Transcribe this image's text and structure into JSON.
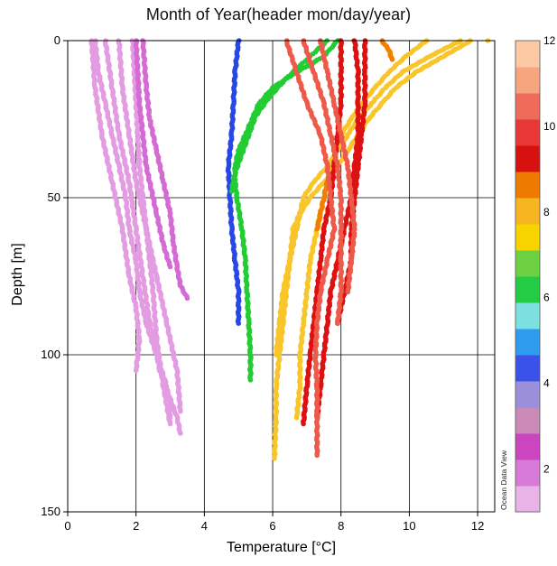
{
  "chart_data": {
    "type": "scatter",
    "title": "Month of Year(header mon/day/year)",
    "xlabel": "Temperature [°C]",
    "ylabel": "Depth [m]",
    "xlim": [
      0,
      12.5
    ],
    "ylim": [
      0,
      150
    ],
    "y_inverted": true,
    "x_ticks": [
      0,
      2,
      4,
      6,
      8,
      10,
      12
    ],
    "y_ticks": [
      0,
      50,
      100,
      150
    ],
    "grid": true,
    "colorbar": {
      "range": [
        1,
        12
      ],
      "ticks": [
        2,
        4,
        6,
        8,
        10,
        12
      ],
      "placement": "right",
      "colors": [
        "#e8b4e8",
        "#d77ad8",
        "#cc44c0",
        "#c98ab8",
        "#9a8fd8",
        "#3a52e8",
        "#2f9cf0",
        "#7de0e0",
        "#22cc44",
        "#6dd040",
        "#f6d400",
        "#f7b51f",
        "#ee7a00",
        "#d71010",
        "#e83838",
        "#f06a5a",
        "#f7a57e",
        "#fbc9a4"
      ]
    },
    "series": [
      {
        "month": 1.5,
        "color": "#e39be2",
        "points": [
          [
            0.8,
            0
          ],
          [
            0.9,
            10
          ],
          [
            1.1,
            20
          ],
          [
            1.3,
            30
          ],
          [
            1.5,
            40
          ],
          [
            1.7,
            50
          ],
          [
            1.8,
            60
          ],
          [
            2.0,
            70
          ],
          [
            2.1,
            80
          ],
          [
            2.3,
            90
          ],
          [
            2.6,
            100
          ],
          [
            2.9,
            110
          ],
          [
            3.0,
            120
          ]
        ]
      },
      {
        "month": 1.5,
        "color": "#e39be2",
        "points": [
          [
            1.1,
            0
          ],
          [
            1.3,
            15
          ],
          [
            1.5,
            30
          ],
          [
            1.8,
            45
          ],
          [
            2.0,
            60
          ],
          [
            2.2,
            75
          ],
          [
            2.4,
            90
          ],
          [
            2.7,
            105
          ],
          [
            3.2,
            120
          ],
          [
            3.3,
            125
          ]
        ]
      },
      {
        "month": 1.5,
        "color": "#e39be2",
        "points": [
          [
            0.7,
            0
          ],
          [
            0.8,
            15
          ],
          [
            1.0,
            30
          ],
          [
            1.3,
            45
          ],
          [
            1.6,
            60
          ],
          [
            1.8,
            75
          ],
          [
            2.0,
            85
          ],
          [
            2.1,
            95
          ],
          [
            2.0,
            105
          ]
        ]
      },
      {
        "month": 1.5,
        "color": "#e39be2",
        "points": [
          [
            1.5,
            0
          ],
          [
            1.6,
            15
          ],
          [
            1.8,
            30
          ],
          [
            2.0,
            45
          ],
          [
            2.3,
            60
          ],
          [
            2.6,
            75
          ],
          [
            2.9,
            90
          ],
          [
            3.2,
            105
          ],
          [
            3.3,
            118
          ]
        ]
      },
      {
        "month": 1.5,
        "color": "#e39be2",
        "points": [
          [
            1.9,
            0
          ],
          [
            2.0,
            20
          ],
          [
            2.1,
            40
          ],
          [
            2.3,
            60
          ],
          [
            2.5,
            80
          ],
          [
            2.6,
            95
          ],
          [
            2.8,
            110
          ],
          [
            3.0,
            122
          ]
        ]
      },
      {
        "month": 2.2,
        "color": "#d46ad3",
        "points": [
          [
            2.2,
            0
          ],
          [
            2.3,
            15
          ],
          [
            2.4,
            25
          ],
          [
            2.6,
            35
          ],
          [
            2.8,
            45
          ],
          [
            3.0,
            55
          ],
          [
            3.1,
            65
          ],
          [
            3.2,
            72
          ],
          [
            3.3,
            78
          ],
          [
            3.5,
            82
          ]
        ]
      },
      {
        "month": 2.2,
        "color": "#d46ad3",
        "points": [
          [
            2.0,
            0
          ],
          [
            2.1,
            20
          ],
          [
            2.3,
            40
          ],
          [
            2.6,
            55
          ],
          [
            2.8,
            65
          ],
          [
            3.0,
            72
          ]
        ]
      },
      {
        "month": 5.0,
        "color": "#2747e6",
        "points": [
          [
            5.0,
            0
          ],
          [
            4.9,
            10
          ],
          [
            4.85,
            20
          ],
          [
            4.8,
            30
          ],
          [
            4.7,
            40
          ],
          [
            4.75,
            50
          ],
          [
            4.8,
            60
          ],
          [
            4.9,
            70
          ],
          [
            5.0,
            80
          ],
          [
            5.0,
            90
          ]
        ]
      },
      {
        "month": 6.8,
        "color": "#22cc33",
        "points": [
          [
            7.9,
            0
          ],
          [
            7.5,
            5
          ],
          [
            6.7,
            10
          ],
          [
            6.0,
            15
          ],
          [
            5.6,
            20
          ],
          [
            5.4,
            25
          ],
          [
            5.2,
            30
          ],
          [
            5.0,
            35
          ],
          [
            4.9,
            40
          ],
          [
            4.9,
            45
          ],
          [
            4.95,
            50
          ],
          [
            5.1,
            60
          ],
          [
            5.2,
            70
          ],
          [
            5.25,
            80
          ],
          [
            5.3,
            90
          ],
          [
            5.35,
            100
          ],
          [
            5.35,
            108
          ]
        ]
      },
      {
        "month": 6.8,
        "color": "#22cc33",
        "points": [
          [
            7.6,
            0
          ],
          [
            7.0,
            6
          ],
          [
            6.4,
            12
          ],
          [
            5.9,
            18
          ],
          [
            5.5,
            24
          ],
          [
            5.3,
            30
          ],
          [
            5.1,
            36
          ],
          [
            4.9,
            42
          ],
          [
            4.8,
            48
          ]
        ]
      },
      {
        "month": 7.8,
        "color": "#f8c52a",
        "points": [
          [
            11.8,
            0
          ],
          [
            11.0,
            5
          ],
          [
            10.2,
            10
          ],
          [
            9.6,
            15
          ],
          [
            9.2,
            20
          ],
          [
            8.8,
            25
          ],
          [
            8.5,
            30
          ],
          [
            8.2,
            35
          ],
          [
            7.9,
            40
          ],
          [
            7.5,
            45
          ],
          [
            7.1,
            50
          ],
          [
            6.8,
            55
          ],
          [
            6.6,
            60
          ],
          [
            6.5,
            70
          ],
          [
            6.4,
            80
          ],
          [
            6.3,
            90
          ],
          [
            6.2,
            100
          ],
          [
            6.1,
            110
          ],
          [
            6.1,
            120
          ],
          [
            6.05,
            133
          ]
        ]
      },
      {
        "month": 7.8,
        "color": "#f8c52a",
        "points": [
          [
            11.5,
            0
          ],
          [
            10.6,
            5
          ],
          [
            9.8,
            10
          ],
          [
            9.3,
            15
          ],
          [
            8.9,
            20
          ],
          [
            8.5,
            25
          ],
          [
            8.2,
            30
          ],
          [
            7.9,
            35
          ],
          [
            7.6,
            40
          ],
          [
            7.2,
            45
          ],
          [
            6.9,
            50
          ],
          [
            6.7,
            60
          ],
          [
            6.5,
            70
          ],
          [
            6.3,
            80
          ],
          [
            6.2,
            90
          ],
          [
            6.1,
            100
          ]
        ]
      },
      {
        "month": 7.8,
        "color": "#f8c52a",
        "points": [
          [
            10.5,
            0
          ],
          [
            9.9,
            5
          ],
          [
            9.4,
            10
          ],
          [
            9.0,
            15
          ],
          [
            8.6,
            20
          ],
          [
            8.3,
            25
          ],
          [
            8.0,
            30
          ],
          [
            7.7,
            40
          ],
          [
            7.5,
            50
          ],
          [
            7.3,
            60
          ],
          [
            7.1,
            70
          ],
          [
            7.0,
            80
          ],
          [
            6.9,
            90
          ],
          [
            6.8,
            100
          ],
          [
            6.8,
            110
          ],
          [
            6.7,
            120
          ]
        ]
      },
      {
        "month": 7.8,
        "color": "#f8c52a",
        "points": [
          [
            12.3,
            0
          ]
        ]
      },
      {
        "month": 8.6,
        "color": "#f07f00",
        "points": [
          [
            9.2,
            0
          ],
          [
            9.4,
            3
          ],
          [
            9.5,
            6
          ]
        ]
      },
      {
        "month": 8.6,
        "color": "#f07f00",
        "points": [
          [
            7.6,
            45
          ],
          [
            7.5,
            50
          ],
          [
            7.4,
            55
          ],
          [
            7.3,
            60
          ]
        ]
      },
      {
        "month": 10.3,
        "color": "#dd1111",
        "points": [
          [
            8.4,
            0
          ],
          [
            8.5,
            10
          ],
          [
            8.5,
            20
          ],
          [
            8.5,
            30
          ],
          [
            8.4,
            40
          ],
          [
            8.3,
            50
          ],
          [
            8.1,
            60
          ],
          [
            7.9,
            70
          ],
          [
            7.7,
            80
          ],
          [
            7.6,
            90
          ],
          [
            7.5,
            100
          ],
          [
            7.4,
            110
          ],
          [
            7.3,
            120
          ]
        ]
      },
      {
        "month": 10.3,
        "color": "#dd1111",
        "points": [
          [
            8.0,
            0
          ],
          [
            8.0,
            10
          ],
          [
            8.0,
            20
          ],
          [
            7.9,
            30
          ],
          [
            7.8,
            40
          ],
          [
            7.7,
            50
          ],
          [
            7.5,
            60
          ],
          [
            7.4,
            70
          ],
          [
            7.3,
            80
          ],
          [
            7.2,
            90
          ],
          [
            7.1,
            100
          ],
          [
            7.0,
            110
          ],
          [
            6.9,
            122
          ]
        ]
      },
      {
        "month": 10.3,
        "color": "#dd1111",
        "points": [
          [
            8.7,
            0
          ],
          [
            8.7,
            10
          ],
          [
            8.7,
            20
          ],
          [
            8.6,
            30
          ],
          [
            8.5,
            40
          ],
          [
            8.4,
            50
          ],
          [
            8.3,
            60
          ],
          [
            8.3,
            70
          ],
          [
            8.1,
            80
          ],
          [
            7.9,
            90
          ]
        ]
      },
      {
        "month": 11.0,
        "color": "#ee5a4a",
        "points": [
          [
            6.4,
            0
          ],
          [
            6.7,
            10
          ],
          [
            7.0,
            20
          ],
          [
            7.4,
            30
          ],
          [
            7.6,
            40
          ],
          [
            7.7,
            50
          ],
          [
            7.8,
            60
          ],
          [
            7.6,
            70
          ],
          [
            7.4,
            80
          ],
          [
            7.3,
            90
          ],
          [
            7.25,
            100
          ],
          [
            7.3,
            110
          ],
          [
            7.3,
            120
          ],
          [
            7.3,
            132
          ]
        ]
      },
      {
        "month": 11.0,
        "color": "#ee5a4a",
        "points": [
          [
            6.9,
            0
          ],
          [
            7.2,
            10
          ],
          [
            7.5,
            20
          ],
          [
            7.7,
            30
          ],
          [
            7.9,
            40
          ],
          [
            8.0,
            50
          ],
          [
            8.0,
            60
          ],
          [
            8.0,
            70
          ],
          [
            8.0,
            80
          ],
          [
            7.9,
            90
          ]
        ]
      },
      {
        "month": 11.0,
        "color": "#ee5a4a",
        "points": [
          [
            7.4,
            0
          ],
          [
            7.6,
            10
          ],
          [
            7.8,
            20
          ],
          [
            8.0,
            30
          ],
          [
            8.2,
            40
          ],
          [
            8.3,
            50
          ],
          [
            8.4,
            60
          ],
          [
            8.3,
            70
          ],
          [
            8.2,
            80
          ]
        ]
      }
    ]
  },
  "watermark": "Ocean Data View"
}
